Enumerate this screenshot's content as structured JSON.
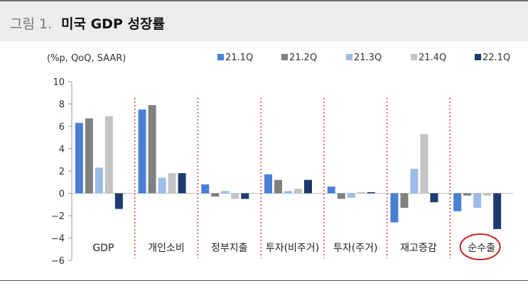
{
  "header": {
    "prefix": "그림 1.",
    "title": "미국 GDP 성장률"
  },
  "chart_data": {
    "type": "bar",
    "unit_label": "(%p, QoQ, SAAR)",
    "ylim": [
      -6,
      10
    ],
    "yticks": [
      10,
      8,
      6,
      4,
      2,
      0,
      -2,
      -4,
      -6
    ],
    "categories": [
      "GDP",
      "개인소비",
      "정부지출",
      "투자(비주거)",
      "투자(주거)",
      "재고증감",
      "순수출"
    ],
    "highlighted_category": "순수출",
    "series": [
      {
        "name": "21.1Q",
        "color": "#4a7fd4",
        "values": [
          6.3,
          7.5,
          0.8,
          1.7,
          0.6,
          -2.6,
          -1.6
        ]
      },
      {
        "name": "21.2Q",
        "color": "#808080",
        "values": [
          6.7,
          7.9,
          -0.3,
          1.2,
          -0.5,
          -1.3,
          -0.2
        ]
      },
      {
        "name": "21.3Q",
        "color": "#9dbce8",
        "values": [
          2.3,
          1.4,
          0.2,
          0.2,
          -0.4,
          2.2,
          -1.3
        ]
      },
      {
        "name": "21.4Q",
        "color": "#c4c4c4",
        "values": [
          6.9,
          1.8,
          -0.5,
          0.4,
          0.1,
          5.3,
          -0.2
        ]
      },
      {
        "name": "22.1Q",
        "color": "#1f3a6e",
        "values": [
          -1.4,
          1.8,
          -0.5,
          1.2,
          0.1,
          -0.8,
          -3.2
        ]
      }
    ]
  }
}
